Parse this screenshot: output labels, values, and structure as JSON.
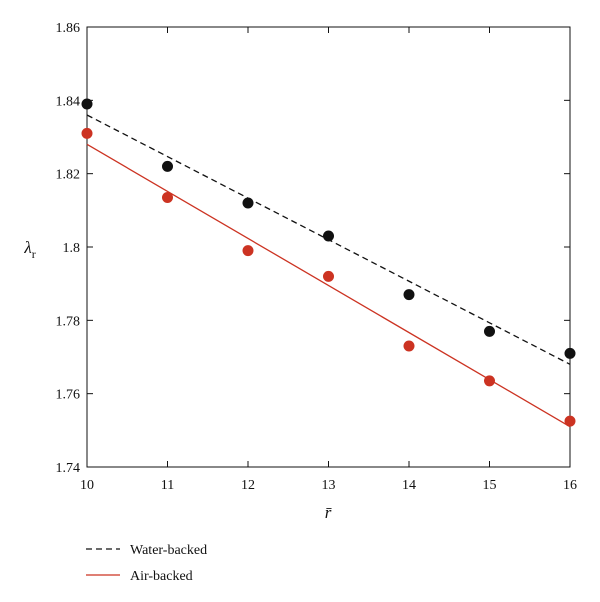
{
  "chart_data": {
    "type": "scatter",
    "xlabel": "r̄",
    "ylabel": "λ",
    "ylabel_subscript": "r",
    "xlim": [
      10,
      16
    ],
    "ylim": [
      1.74,
      1.86
    ],
    "x_ticks": [
      "10",
      "11",
      "12",
      "13",
      "14",
      "15",
      "16"
    ],
    "y_ticks": [
      "1.74",
      "1.76",
      "1.78",
      "1.8",
      "1.82",
      "1.84",
      "1.86"
    ],
    "grid": false,
    "legend_position": "bottom-left",
    "series": [
      {
        "name": "Water-backed",
        "color": "#111111",
        "line_style": "dashed",
        "x": [
          10,
          11,
          12,
          13,
          14,
          15,
          16
        ],
        "y": [
          1.839,
          1.822,
          1.812,
          1.803,
          1.787,
          1.777,
          1.771
        ],
        "fit": [
          [
            10,
            1.836
          ],
          [
            16,
            1.768
          ]
        ]
      },
      {
        "name": "Air-backed",
        "color": "#cc3322",
        "line_style": "solid",
        "x": [
          10,
          11,
          12,
          13,
          14,
          15,
          16
        ],
        "y": [
          1.831,
          1.8135,
          1.799,
          1.792,
          1.773,
          1.7635,
          1.7525
        ],
        "fit": [
          [
            10,
            1.828
          ],
          [
            16,
            1.751
          ]
        ]
      }
    ]
  }
}
